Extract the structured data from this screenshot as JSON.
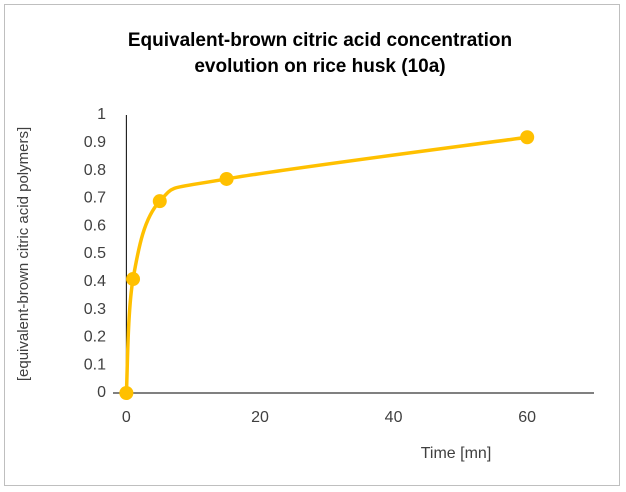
{
  "chart_data": {
    "type": "line",
    "title": "Equivalent-brown citric acid concentration evolution on rice husk (10a)",
    "x_label": "Time [mn]",
    "y_label": "[equivalent-brown citric acid polymers]",
    "x": [
      0,
      1,
      5,
      15,
      60
    ],
    "series": [
      {
        "name": "10a",
        "color": "#ffc000",
        "values": [
          0,
          0.41,
          0.69,
          0.77,
          0.92
        ]
      }
    ],
    "xlim": [
      -2,
      70
    ],
    "xticks": [
      0,
      20,
      40,
      60
    ],
    "ylim": [
      0,
      1
    ],
    "yticks": [
      0,
      0.1,
      0.2,
      0.3,
      0.4,
      0.5,
      0.6,
      0.7,
      0.8,
      0.9,
      1
    ],
    "grid": false
  }
}
